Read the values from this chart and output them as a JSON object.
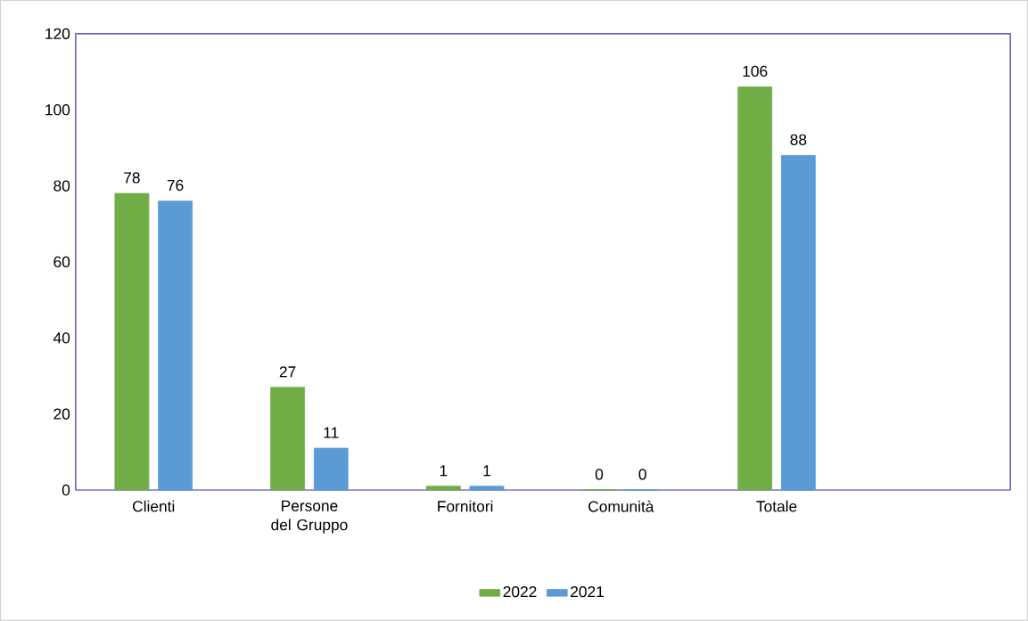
{
  "chart_data": {
    "type": "bar",
    "categories": [
      "Clienti",
      "Persone del Gruppo",
      "Fornitori",
      "Comunità",
      "Totale",
      null
    ],
    "series": [
      {
        "name": "2022",
        "color": "#70ad47",
        "values": [
          78,
          27,
          1,
          0,
          106,
          null
        ]
      },
      {
        "name": "2021",
        "color": "#5b9bd5",
        "values": [
          76,
          11,
          1,
          0,
          88,
          null
        ]
      }
    ],
    "ylim": [
      0,
      120
    ],
    "yticks": [
      0,
      20,
      40,
      60,
      80,
      100,
      120
    ],
    "grid": false,
    "legend": "bottom",
    "data_labels": true
  }
}
